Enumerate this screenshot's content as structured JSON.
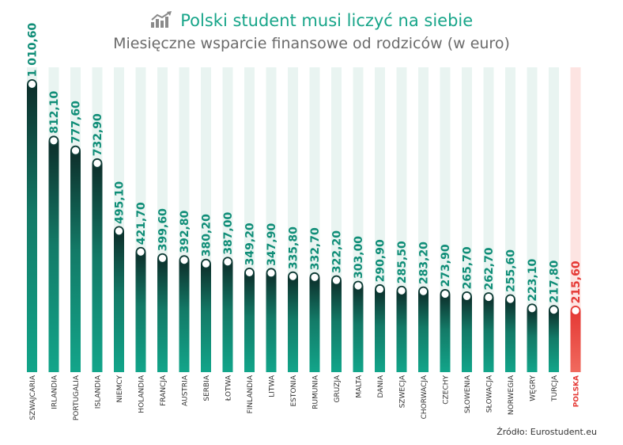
{
  "title": "Polski student musi liczyć na siebie",
  "subtitle": "Miesięczne wsparcie finansowe od rodziców (w euro)",
  "source": "Źródło: Eurostudent.eu",
  "colors": {
    "title": "#17a589",
    "bar_top": "#137a67",
    "bar_bottom": "#12a58a",
    "bar_top_dark": "#0d2e2a",
    "track": "#e9f4f1",
    "highlight_bar": "#e53935",
    "highlight_track": "#fde4e2",
    "value_text": "#0f8d77",
    "highlight_text": "#e53935"
  },
  "chart_data": {
    "type": "bar",
    "categories": [
      "SZWAJCARIA",
      "IRLANDIA",
      "PORTUGALIA",
      "ISLANDIA",
      "NIEMCY",
      "HOLANDIA",
      "FRANCJA",
      "AUSTRIA",
      "SERBIA",
      "ŁOTWA",
      "FINLANDIA",
      "LITWA",
      "ESTONIA",
      "RUMUNIA",
      "GRUZJA",
      "MALTA",
      "DANIA",
      "SZWECJA",
      "CHORWACJA",
      "CZECHY",
      "SŁOWENIA",
      "SŁOWACJA",
      "NORWEGIA",
      "WĘGRY",
      "TURCJA",
      "POLSKA"
    ],
    "values": [
      1010.6,
      812.1,
      777.6,
      732.9,
      495.1,
      421.7,
      399.6,
      392.8,
      380.2,
      387.0,
      349.2,
      347.9,
      335.8,
      332.7,
      322.2,
      303.0,
      290.9,
      285.5,
      283.2,
      273.9,
      265.7,
      262.7,
      255.6,
      223.1,
      217.8,
      215.6
    ],
    "labels": [
      "1 010,60",
      "812,10",
      "777,60",
      "732,90",
      "495,10",
      "421,70",
      "399,60",
      "392,80",
      "380,20",
      "387,00",
      "349,20",
      "347,90",
      "335,80",
      "332,70",
      "322,20",
      "303,00",
      "290,90",
      "285,50",
      "283,20",
      "273,90",
      "265,70",
      "262,70",
      "255,60",
      "223,10",
      "217,80",
      "215,60"
    ],
    "highlight": "POLSKA",
    "ylim": [
      0,
      1070
    ]
  }
}
